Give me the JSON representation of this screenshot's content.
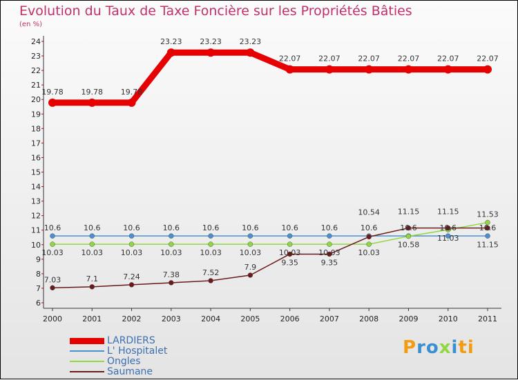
{
  "chart_data": {
    "type": "line",
    "title": "Evolution du Taux de Taxe Foncière sur les Propriétés Bâties",
    "subtitle": "(en %)",
    "x": [
      "2000",
      "2001",
      "2002",
      "2003",
      "2004",
      "2005",
      "2006",
      "2007",
      "2008",
      "2009",
      "2010",
      "2011"
    ],
    "ylim": [
      6,
      24
    ],
    "yticks": [
      6,
      7,
      8,
      9,
      10,
      11,
      12,
      13,
      14,
      15,
      16,
      17,
      18,
      19,
      20,
      21,
      22,
      23,
      24
    ],
    "series": [
      {
        "name": "LARDIERS",
        "color": "#e60000",
        "values": [
          19.78,
          19.78,
          19.78,
          23.23,
          23.23,
          23.23,
          22.07,
          22.07,
          22.07,
          22.07,
          22.07,
          22.07
        ]
      },
      {
        "name": "L' Hospitalet",
        "color": "#4a90d0",
        "values": [
          10.6,
          10.6,
          10.6,
          10.6,
          10.6,
          10.6,
          10.6,
          10.6,
          10.6,
          10.6,
          10.6,
          10.6
        ]
      },
      {
        "name": "Ongles",
        "color": "#8fd840",
        "values": [
          10.03,
          10.03,
          10.03,
          10.03,
          10.03,
          10.03,
          10.03,
          10.03,
          10.03,
          10.58,
          11.03,
          11.53
        ]
      },
      {
        "name": "Saumane",
        "color": "#6a1a1a",
        "values": [
          7.03,
          7.1,
          7.24,
          7.38,
          7.52,
          7.9,
          9.35,
          9.35,
          10.54,
          11.15,
          11.15,
          11.15
        ]
      }
    ],
    "legend": "bottom-left"
  },
  "logo": "Proxiti"
}
